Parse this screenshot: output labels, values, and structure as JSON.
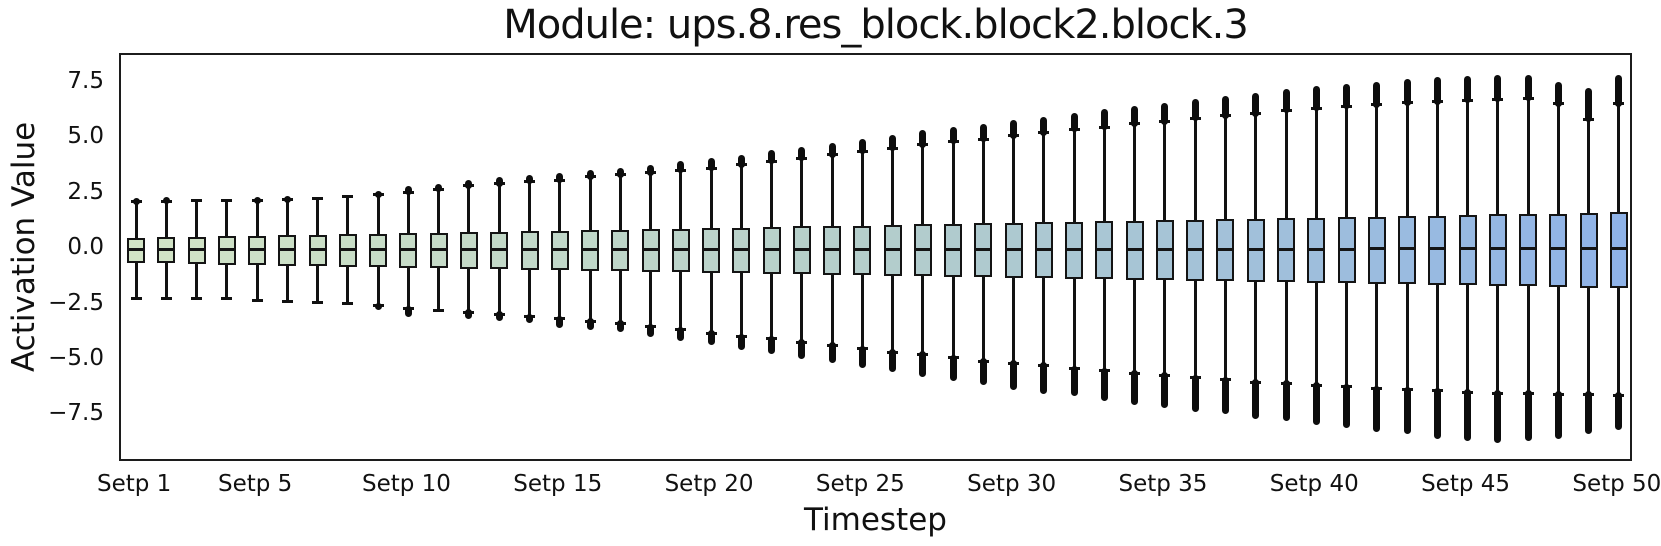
{
  "chart_data": {
    "type": "boxplot",
    "title": "Module: ups.8.res_block.block2.block.3",
    "xlabel": "Timestep",
    "ylabel": "Activation Value",
    "ylim": [
      -9.6,
      8.8
    ],
    "grid": false,
    "legend": null,
    "y_ticks": [
      {
        "value": 7.5,
        "label": "7.5"
      },
      {
        "value": 5.0,
        "label": "5.0"
      },
      {
        "value": 2.5,
        "label": "2.5"
      },
      {
        "value": 0.0,
        "label": "0.0"
      },
      {
        "value": -2.5,
        "label": "−2.5"
      },
      {
        "value": -5.0,
        "label": "−5.0"
      },
      {
        "value": -7.5,
        "label": "−7.5"
      }
    ],
    "x_ticks": [
      {
        "position": 1,
        "label": "Setp 1"
      },
      {
        "position": 5,
        "label": "Setp 5"
      },
      {
        "position": 10,
        "label": "Setp 10"
      },
      {
        "position": 15,
        "label": "Setp 15"
      },
      {
        "position": 20,
        "label": "Setp 20"
      },
      {
        "position": 25,
        "label": "Setp 25"
      },
      {
        "position": 30,
        "label": "Setp 30"
      },
      {
        "position": 35,
        "label": "Setp 35"
      },
      {
        "position": 40,
        "label": "Setp 40"
      },
      {
        "position": 45,
        "label": "Setp 45"
      },
      {
        "position": 50,
        "label": "Setp 50"
      }
    ],
    "colors": {
      "box_gradient_start": "#d2e4c6",
      "box_gradient_mid": "#b4cecb",
      "box_gradient_end": "#8fb3e8",
      "line": "#141414",
      "background": "#ffffff"
    },
    "boxes": [
      {
        "step": 1,
        "q1": -0.58,
        "median": 0.02,
        "q3": 0.55,
        "whisker_low": -2.2,
        "whisker_high": 2.2,
        "outlier_high": 2.35,
        "outlier_low": null
      },
      {
        "step": 2,
        "q1": -0.6,
        "median": 0.02,
        "q3": 0.57,
        "whisker_low": -2.2,
        "whisker_high": 2.2,
        "outlier_high": 2.4,
        "outlier_low": null
      },
      {
        "step": 3,
        "q1": -0.63,
        "median": 0.02,
        "q3": 0.6,
        "whisker_low": -2.2,
        "whisker_high": 2.22,
        "outlier_high": null,
        "outlier_low": null
      },
      {
        "step": 4,
        "q1": -0.65,
        "median": 0.02,
        "q3": 0.62,
        "whisker_low": -2.2,
        "whisker_high": 2.23,
        "outlier_high": null,
        "outlier_low": null
      },
      {
        "step": 5,
        "q1": -0.67,
        "median": 0.02,
        "q3": 0.64,
        "whisker_low": -2.25,
        "whisker_high": 2.25,
        "outlier_high": 2.4,
        "outlier_low": null
      },
      {
        "step": 6,
        "q1": -0.7,
        "median": 0.02,
        "q3": 0.67,
        "whisker_low": -2.3,
        "whisker_high": 2.3,
        "outlier_high": 2.45,
        "outlier_low": null
      },
      {
        "step": 7,
        "q1": -0.72,
        "median": 0.02,
        "q3": 0.69,
        "whisker_low": -2.35,
        "whisker_high": 2.33,
        "outlier_high": null,
        "outlier_low": null
      },
      {
        "step": 8,
        "q1": -0.74,
        "median": 0.03,
        "q3": 0.71,
        "whisker_low": -2.4,
        "whisker_high": 2.4,
        "outlier_high": null,
        "outlier_low": null
      },
      {
        "step": 9,
        "q1": -0.76,
        "median": 0.03,
        "q3": 0.74,
        "whisker_low": -2.5,
        "whisker_high": 2.5,
        "outlier_high": 2.65,
        "outlier_low": -2.6
      },
      {
        "step": 10,
        "q1": -0.79,
        "median": 0.03,
        "q3": 0.76,
        "whisker_low": -2.65,
        "whisker_high": 2.6,
        "outlier_high": 2.9,
        "outlier_low": -3.0
      },
      {
        "step": 11,
        "q1": -0.81,
        "median": 0.03,
        "q3": 0.78,
        "whisker_low": -2.7,
        "whisker_high": 2.75,
        "outlier_high": 3.0,
        "outlier_low": null
      },
      {
        "step": 12,
        "q1": -0.83,
        "median": 0.03,
        "q3": 0.81,
        "whisker_low": -2.8,
        "whisker_high": 2.9,
        "outlier_high": 3.15,
        "outlier_low": -3.1
      },
      {
        "step": 13,
        "q1": -0.86,
        "median": 0.03,
        "q3": 0.83,
        "whisker_low": -2.9,
        "whisker_high": 3.0,
        "outlier_high": 3.3,
        "outlier_low": -3.2
      },
      {
        "step": 14,
        "q1": -0.88,
        "median": 0.03,
        "q3": 0.85,
        "whisker_low": -3.0,
        "whisker_high": 3.1,
        "outlier_high": 3.4,
        "outlier_low": -3.3
      },
      {
        "step": 15,
        "q1": -0.9,
        "median": 0.03,
        "q3": 0.88,
        "whisker_low": -3.1,
        "whisker_high": 3.15,
        "outlier_high": 3.5,
        "outlier_low": -3.5
      },
      {
        "step": 16,
        "q1": -0.93,
        "median": 0.03,
        "q3": 0.9,
        "whisker_low": -3.2,
        "whisker_high": 3.3,
        "outlier_high": 3.6,
        "outlier_low": -3.6
      },
      {
        "step": 17,
        "q1": -0.95,
        "median": 0.03,
        "q3": 0.93,
        "whisker_low": -3.3,
        "whisker_high": 3.4,
        "outlier_high": 3.7,
        "outlier_low": -3.7
      },
      {
        "step": 18,
        "q1": -0.97,
        "median": 0.03,
        "q3": 0.95,
        "whisker_low": -3.45,
        "whisker_high": 3.5,
        "outlier_high": 3.85,
        "outlier_low": -3.9
      },
      {
        "step": 19,
        "q1": -0.99,
        "median": 0.04,
        "q3": 0.97,
        "whisker_low": -3.6,
        "whisker_high": 3.6,
        "outlier_high": 4.0,
        "outlier_low": -4.1
      },
      {
        "step": 20,
        "q1": -1.02,
        "median": 0.04,
        "q3": 1.0,
        "whisker_low": -3.75,
        "whisker_high": 3.7,
        "outlier_high": 4.15,
        "outlier_low": -4.3
      },
      {
        "step": 21,
        "q1": -1.04,
        "median": 0.04,
        "q3": 1.02,
        "whisker_low": -3.9,
        "whisker_high": 3.85,
        "outlier_high": 4.3,
        "outlier_low": -4.5
      },
      {
        "step": 22,
        "q1": -1.06,
        "median": 0.04,
        "q3": 1.04,
        "whisker_low": -4.0,
        "whisker_high": 4.0,
        "outlier_high": 4.5,
        "outlier_low": -4.7
      },
      {
        "step": 23,
        "q1": -1.09,
        "median": 0.04,
        "q3": 1.07,
        "whisker_low": -4.15,
        "whisker_high": 4.15,
        "outlier_high": 4.65,
        "outlier_low": -4.9
      },
      {
        "step": 24,
        "q1": -1.11,
        "median": 0.04,
        "q3": 1.09,
        "whisker_low": -4.3,
        "whisker_high": 4.3,
        "outlier_high": 4.85,
        "outlier_low": -5.1
      },
      {
        "step": 25,
        "q1": -1.13,
        "median": 0.04,
        "q3": 1.11,
        "whisker_low": -4.45,
        "whisker_high": 4.45,
        "outlier_high": 5.0,
        "outlier_low": -5.3
      },
      {
        "step": 26,
        "q1": -1.16,
        "median": 0.04,
        "q3": 1.14,
        "whisker_low": -4.6,
        "whisker_high": 4.6,
        "outlier_high": 5.2,
        "outlier_low": -5.5
      },
      {
        "step": 27,
        "q1": -1.18,
        "median": 0.04,
        "q3": 1.16,
        "whisker_low": -4.7,
        "whisker_high": 4.75,
        "outlier_high": 5.4,
        "outlier_low": -5.7
      },
      {
        "step": 28,
        "q1": -1.2,
        "median": 0.04,
        "q3": 1.18,
        "whisker_low": -4.85,
        "whisker_high": 4.9,
        "outlier_high": 5.55,
        "outlier_low": -5.9
      },
      {
        "step": 29,
        "q1": -1.23,
        "median": 0.04,
        "q3": 1.21,
        "whisker_low": -5.0,
        "whisker_high": 5.0,
        "outlier_high": 5.7,
        "outlier_low": -6.1
      },
      {
        "step": 30,
        "q1": -1.25,
        "median": 0.05,
        "q3": 1.23,
        "whisker_low": -5.1,
        "whisker_high": 5.15,
        "outlier_high": 5.85,
        "outlier_low": -6.3
      },
      {
        "step": 31,
        "q1": -1.27,
        "median": 0.05,
        "q3": 1.25,
        "whisker_low": -5.2,
        "whisker_high": 5.3,
        "outlier_high": 6.0,
        "outlier_low": -6.5
      },
      {
        "step": 32,
        "q1": -1.3,
        "median": 0.05,
        "q3": 1.28,
        "whisker_low": -5.35,
        "whisker_high": 5.45,
        "outlier_high": 6.2,
        "outlier_low": -6.6
      },
      {
        "step": 33,
        "q1": -1.32,
        "median": 0.05,
        "q3": 1.3,
        "whisker_low": -5.45,
        "whisker_high": 5.55,
        "outlier_high": 6.35,
        "outlier_low": -6.8
      },
      {
        "step": 34,
        "q1": -1.34,
        "median": 0.05,
        "q3": 1.32,
        "whisker_low": -5.55,
        "whisker_high": 5.7,
        "outlier_high": 6.5,
        "outlier_low": -7.0
      },
      {
        "step": 35,
        "q1": -1.36,
        "median": 0.05,
        "q3": 1.35,
        "whisker_low": -5.65,
        "whisker_high": 5.8,
        "outlier_high": 6.65,
        "outlier_low": -7.1
      },
      {
        "step": 36,
        "q1": -1.39,
        "median": 0.05,
        "q3": 1.37,
        "whisker_low": -5.75,
        "whisker_high": 5.95,
        "outlier_high": 6.8,
        "outlier_low": -7.3
      },
      {
        "step": 37,
        "q1": -1.41,
        "median": 0.05,
        "q3": 1.4,
        "whisker_low": -5.85,
        "whisker_high": 6.05,
        "outlier_high": 6.95,
        "outlier_low": -7.4
      },
      {
        "step": 38,
        "q1": -1.43,
        "median": 0.05,
        "q3": 1.42,
        "whisker_low": -5.95,
        "whisker_high": 6.15,
        "outlier_high": 7.1,
        "outlier_low": -7.6
      },
      {
        "step": 39,
        "q1": -1.46,
        "median": 0.05,
        "q3": 1.44,
        "whisker_low": -6.0,
        "whisker_high": 6.3,
        "outlier_high": 7.25,
        "outlier_low": -7.7
      },
      {
        "step": 40,
        "q1": -1.48,
        "median": 0.05,
        "q3": 1.47,
        "whisker_low": -6.1,
        "whisker_high": 6.4,
        "outlier_high": 7.4,
        "outlier_low": -7.9
      },
      {
        "step": 41,
        "q1": -1.5,
        "median": 0.05,
        "q3": 1.49,
        "whisker_low": -6.15,
        "whisker_high": 6.5,
        "outlier_high": 7.5,
        "outlier_low": -8.0
      },
      {
        "step": 42,
        "q1": -1.53,
        "median": 0.06,
        "q3": 1.51,
        "whisker_low": -6.25,
        "whisker_high": 6.55,
        "outlier_high": 7.6,
        "outlier_low": -8.2
      },
      {
        "step": 43,
        "q1": -1.55,
        "median": 0.06,
        "q3": 1.54,
        "whisker_low": -6.3,
        "whisker_high": 6.65,
        "outlier_high": 7.7,
        "outlier_low": -8.3
      },
      {
        "step": 44,
        "q1": -1.57,
        "median": 0.06,
        "q3": 1.56,
        "whisker_low": -6.35,
        "whisker_high": 6.7,
        "outlier_high": 7.8,
        "outlier_low": -8.5
      },
      {
        "step": 45,
        "q1": -1.59,
        "median": 0.06,
        "q3": 1.58,
        "whisker_low": -6.4,
        "whisker_high": 6.75,
        "outlier_high": 7.85,
        "outlier_low": -8.6
      },
      {
        "step": 46,
        "q1": -1.62,
        "median": 0.06,
        "q3": 1.61,
        "whisker_low": -6.45,
        "whisker_high": 6.8,
        "outlier_high": 7.9,
        "outlier_low": -8.7
      },
      {
        "step": 47,
        "q1": -1.64,
        "median": 0.06,
        "q3": 1.63,
        "whisker_low": -6.45,
        "whisker_high": 6.85,
        "outlier_high": 7.9,
        "outlier_low": -8.6
      },
      {
        "step": 48,
        "q1": -1.66,
        "median": 0.06,
        "q3": 1.65,
        "whisker_low": -6.5,
        "whisker_high": 6.6,
        "outlier_high": 7.6,
        "outlier_low": -8.5
      },
      {
        "step": 49,
        "q1": -1.69,
        "median": 0.06,
        "q3": 1.68,
        "whisker_low": -6.5,
        "whisker_high": 5.9,
        "outlier_high": 7.3,
        "outlier_low": -8.3
      },
      {
        "step": 50,
        "q1": -1.71,
        "median": 0.06,
        "q3": 1.7,
        "whisker_low": -6.55,
        "whisker_high": 6.6,
        "outlier_high": 7.9,
        "outlier_low": -8.1
      }
    ]
  }
}
